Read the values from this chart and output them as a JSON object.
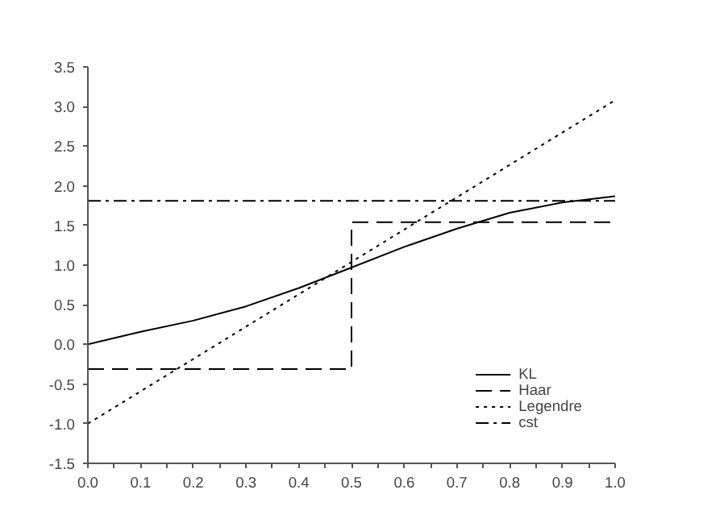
{
  "chart_data": {
    "type": "line",
    "xlim": [
      0,
      1
    ],
    "ylim": [
      -1.5,
      3.5
    ],
    "xticks": [
      {
        "value": 0.0,
        "label": "0.0"
      },
      {
        "value": 0.05,
        "label": null
      },
      {
        "value": 0.1,
        "label": "0.1"
      },
      {
        "value": 0.15,
        "label": null
      },
      {
        "value": 0.2,
        "label": "0.2"
      },
      {
        "value": 0.25,
        "label": null
      },
      {
        "value": 0.3,
        "label": "0.3"
      },
      {
        "value": 0.35,
        "label": null
      },
      {
        "value": 0.4,
        "label": "0.4"
      },
      {
        "value": 0.45,
        "label": null
      },
      {
        "value": 0.5,
        "label": "0.5"
      },
      {
        "value": 0.55,
        "label": null
      },
      {
        "value": 0.6,
        "label": "0.6"
      },
      {
        "value": 0.65,
        "label": null
      },
      {
        "value": 0.7,
        "label": "0.7"
      },
      {
        "value": 0.75,
        "label": null
      },
      {
        "value": 0.8,
        "label": "0.8"
      },
      {
        "value": 0.85,
        "label": null
      },
      {
        "value": 0.9,
        "label": "0.9"
      },
      {
        "value": 0.95,
        "label": null
      },
      {
        "value": 1.0,
        "label": "1.0"
      }
    ],
    "yticks": [
      {
        "value": -1.5,
        "label": "-1.5"
      },
      {
        "value": -1.0,
        "label": "-1.0"
      },
      {
        "value": -0.5,
        "label": "-0.5"
      },
      {
        "value": 0.0,
        "label": "0.0"
      },
      {
        "value": 0.5,
        "label": "0.5"
      },
      {
        "value": 1.0,
        "label": "1.0"
      },
      {
        "value": 1.5,
        "label": "1.5"
      },
      {
        "value": 2.0,
        "label": "2.0"
      },
      {
        "value": 2.5,
        "label": "2.5"
      },
      {
        "value": 3.0,
        "label": "3.0"
      },
      {
        "value": 3.5,
        "label": "3.5"
      }
    ],
    "grid": false,
    "legend": "bottom right",
    "marker": "none",
    "series": [
      {
        "name": "KL",
        "color": "#000000",
        "line_style": "solid",
        "x": [
          0,
          0.1,
          0.2,
          0.3,
          0.4,
          0.5,
          0.6,
          0.7,
          0.8,
          0.9,
          1.0
        ],
        "values": [
          0,
          0.16,
          0.3,
          0.48,
          0.71,
          0.97,
          1.23,
          1.46,
          1.66,
          1.79,
          1.87
        ]
      },
      {
        "name": "Haar",
        "color": "#000000",
        "line_style": "dashed",
        "x": [
          0,
          0.5,
          0.5,
          1
        ],
        "values": [
          -0.31,
          -0.31,
          1.54,
          1.54
        ]
      },
      {
        "name": "Legendre",
        "color": "#000000",
        "line_style": "dotted",
        "x": [
          0,
          1
        ],
        "values": [
          -1.0,
          3.08
        ]
      },
      {
        "name": "cst",
        "color": "#000000",
        "line_style": "dashdot",
        "x": [
          0,
          1
        ],
        "values": [
          1.81,
          1.81
        ]
      }
    ]
  }
}
